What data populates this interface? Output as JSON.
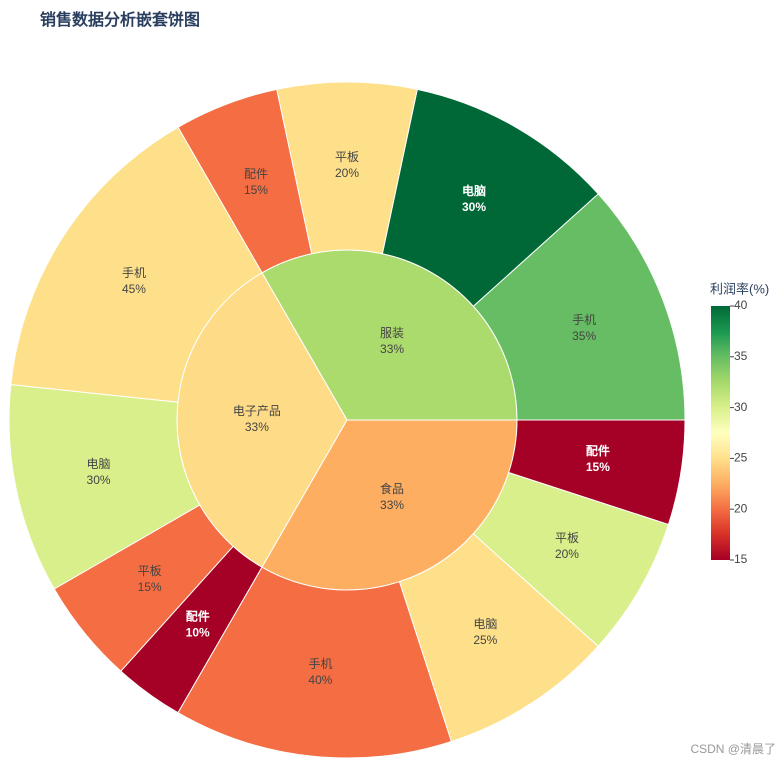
{
  "chart_data": {
    "type": "sunburst",
    "title": "销售数据分析嵌套饼图",
    "categories": [
      "服装",
      "电子产品",
      "食品"
    ],
    "values": [
      33,
      33,
      33
    ],
    "value_labels": [
      "33%",
      "33%",
      "33%"
    ],
    "profit": [
      32.25,
      24.75,
      22.5
    ],
    "children": [
      {
        "categories": [
          "手机",
          "电脑",
          "平板",
          "配件"
        ],
        "values": [
          35,
          30,
          20,
          15
        ],
        "value_labels": [
          "35%",
          "30%",
          "20%",
          "15%"
        ],
        "profit": [
          35,
          40,
          25,
          20
        ]
      },
      {
        "categories": [
          "手机",
          "电脑",
          "平板",
          "配件"
        ],
        "values": [
          45,
          30,
          15,
          10
        ],
        "value_labels": [
          "45%",
          "30%",
          "15%",
          "10%"
        ],
        "profit": [
          25,
          30,
          20,
          15
        ]
      },
      {
        "categories": [
          "手机",
          "电脑",
          "平板",
          "配件"
        ],
        "values": [
          40,
          25,
          20,
          15
        ],
        "value_labels": [
          "40%",
          "25%",
          "20%",
          "15%"
        ],
        "profit": [
          20,
          25,
          30,
          15
        ]
      }
    ],
    "colorbar": {
      "title": "利润率(%)",
      "range": [
        15,
        40
      ],
      "ticks": [
        15,
        20,
        25,
        30,
        35,
        40
      ],
      "colorscale": [
        [
          0,
          "#a50026"
        ],
        [
          0.1,
          "#d73027"
        ],
        [
          0.2,
          "#f46d43"
        ],
        [
          0.3,
          "#fdae61"
        ],
        [
          0.4,
          "#fee08b"
        ],
        [
          0.5,
          "#ffffbf"
        ],
        [
          0.6,
          "#d9ef8b"
        ],
        [
          0.7,
          "#a6d96a"
        ],
        [
          0.8,
          "#66bd63"
        ],
        [
          0.9,
          "#1a9850"
        ],
        [
          1,
          "#006837"
        ]
      ]
    },
    "watermark": "CSDN @清晨了"
  }
}
